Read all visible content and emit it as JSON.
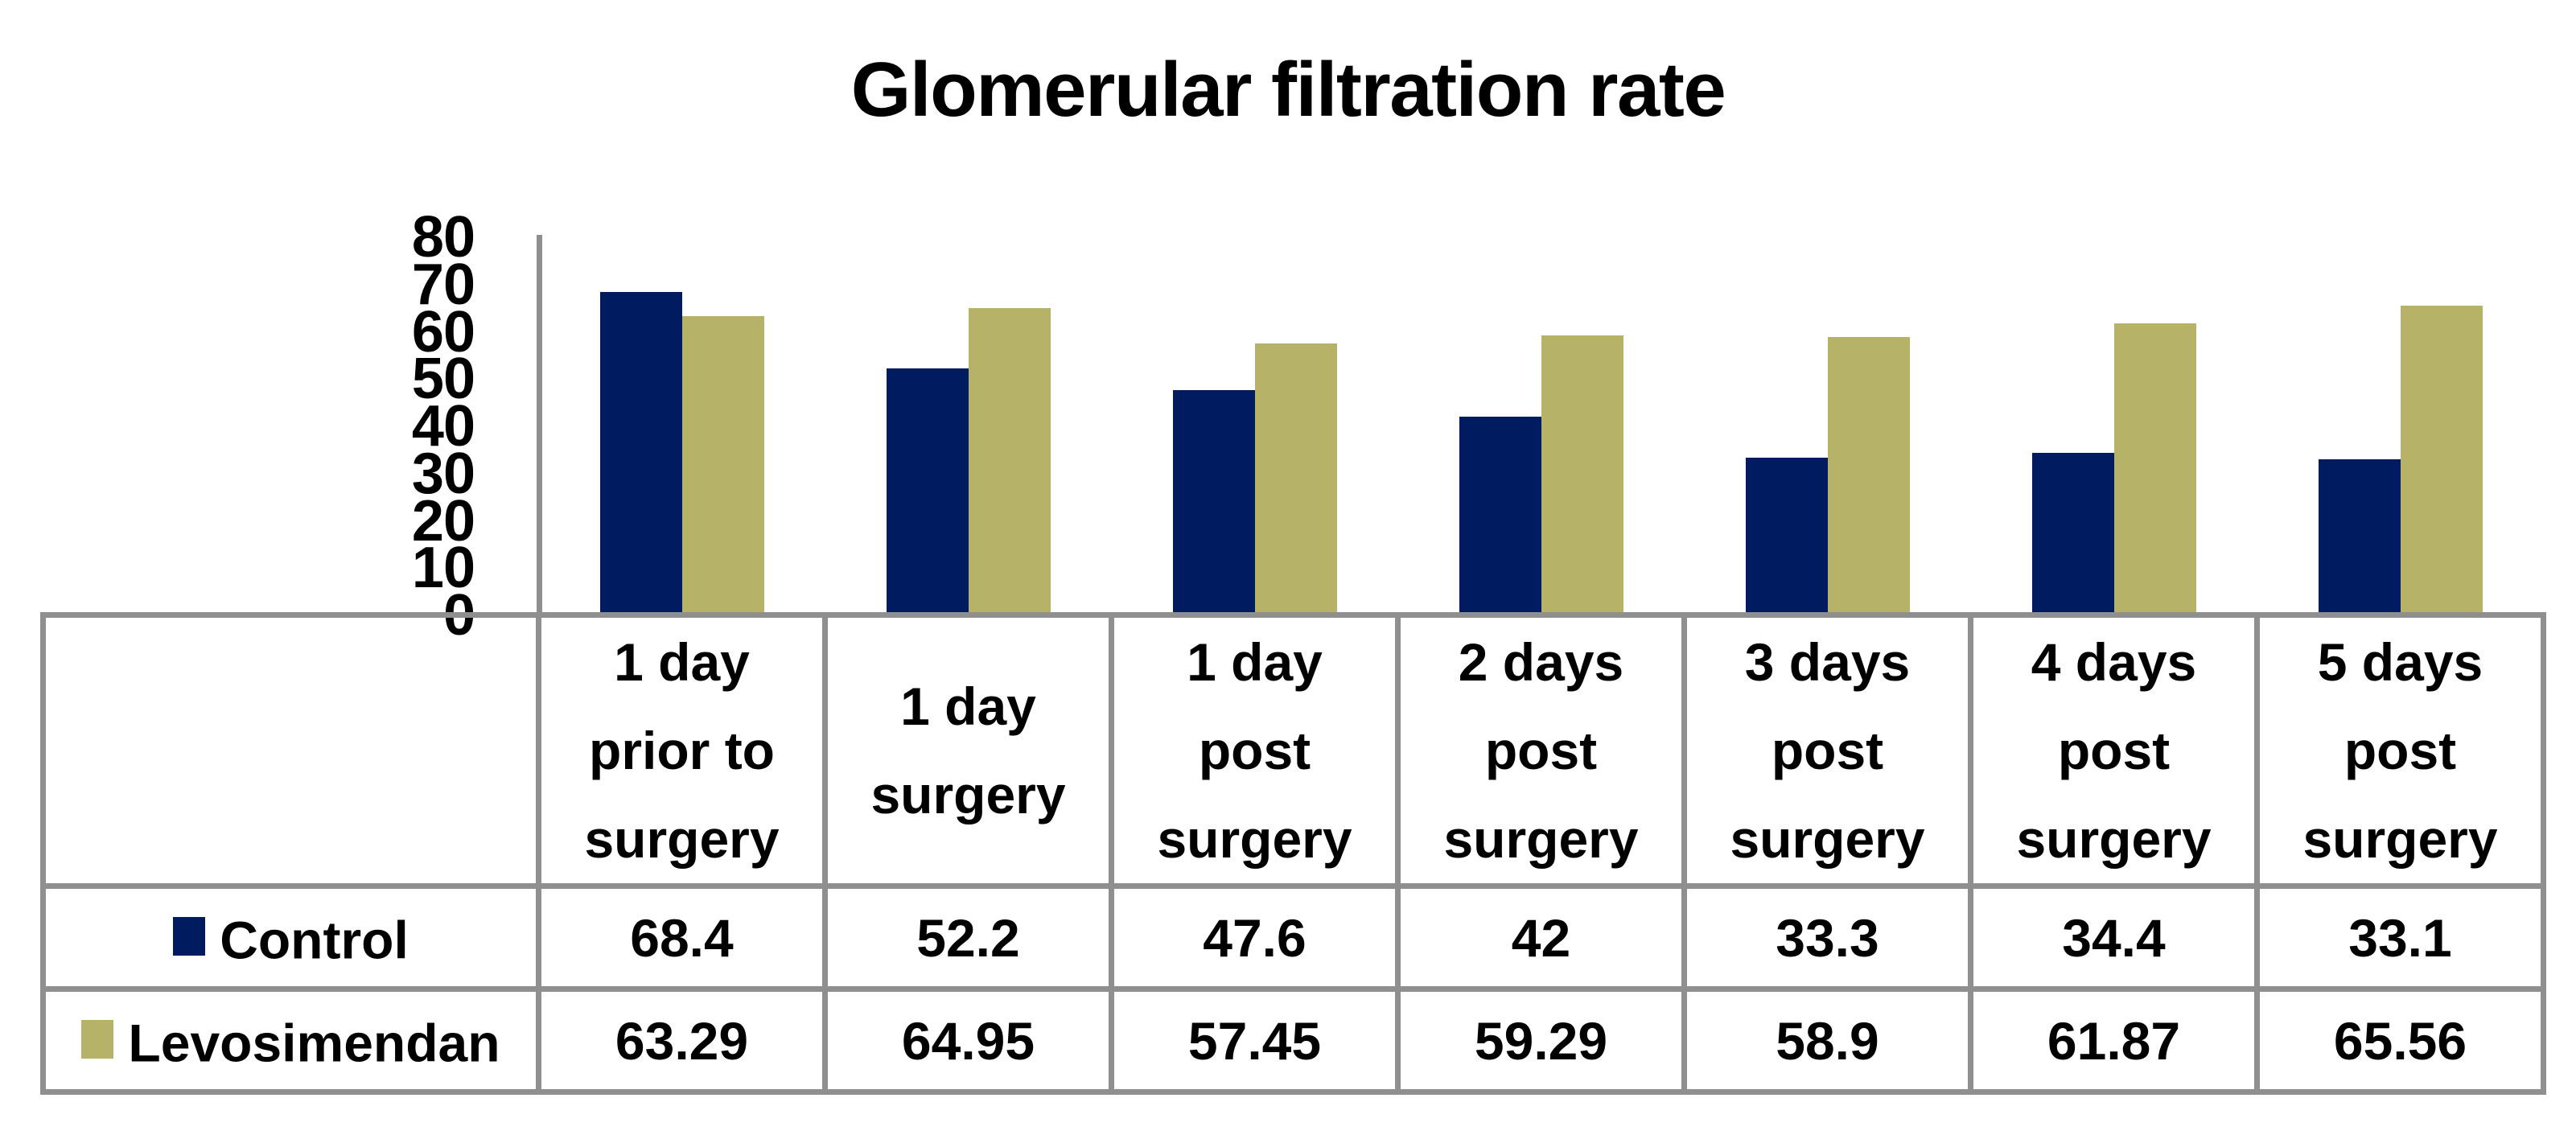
{
  "chart_data": {
    "type": "bar",
    "title": "Glomerular filtration rate",
    "categories": [
      "1 day\nprior to\nsurgery",
      "1 day\nsurgery",
      "1 day\npost\nsurgery",
      "2 days\npost\nsurgery",
      "3 days\npost\nsurgery",
      "4 days\npost\nsurgery",
      "5 days\npost\nsurgery"
    ],
    "series": [
      {
        "name": "Control",
        "color": "#011B61",
        "values": [
          68.4,
          52.2,
          47.6,
          42,
          33.3,
          34.4,
          33.1
        ]
      },
      {
        "name": "Levosimendan",
        "color": "#B6B267",
        "values": [
          63.29,
          64.95,
          57.45,
          59.29,
          58.9,
          61.87,
          65.56
        ]
      }
    ],
    "xlabel": "",
    "ylabel": "",
    "ylim": [
      0,
      80
    ],
    "yticks": [
      0,
      10,
      20,
      30,
      40,
      50,
      60,
      70,
      80
    ],
    "grid": false,
    "legend_position": "table rows left of data table",
    "axis_color": "#8F8F8F",
    "table_border_color": "#8F8F8F",
    "text_color": "#000000",
    "background_color": "#FFFFFF"
  }
}
